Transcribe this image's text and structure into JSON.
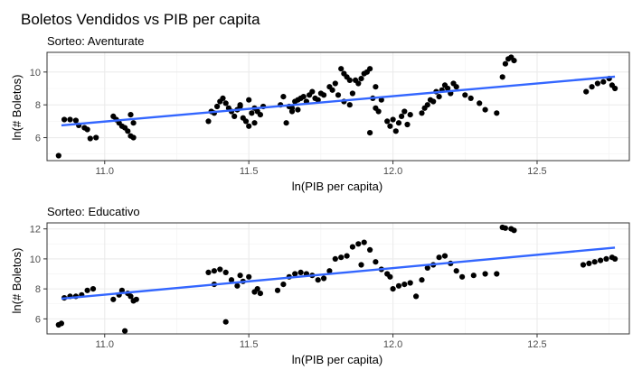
{
  "figure": {
    "title": "Boletos Vendidos vs PIB per capita"
  },
  "chart_data": [
    {
      "type": "scatter",
      "subtitle": "Sorteo: Aventurate",
      "xlabel": "ln(PIB per capita)",
      "ylabel": "ln(# Boletos)",
      "xlim": [
        10.8,
        12.82
      ],
      "ylim": [
        4.6,
        11.2
      ],
      "xticks": [
        11.0,
        11.5,
        12.0,
        12.5
      ],
      "xtick_labels": [
        "11.0",
        "11.5",
        "12.0",
        "12.5"
      ],
      "yticks": [
        6,
        8,
        10
      ],
      "ytick_labels": [
        "6",
        "8",
        "10"
      ],
      "grid": true,
      "point_color": "#000000",
      "trend_color": "#3366ff",
      "trend_line": {
        "x": [
          10.85,
          12.77
        ],
        "y": [
          6.75,
          9.72
        ]
      },
      "points": [
        [
          10.84,
          4.9
        ],
        [
          10.86,
          7.1
        ],
        [
          10.88,
          7.1
        ],
        [
          10.9,
          7.05
        ],
        [
          10.91,
          6.75
        ],
        [
          10.93,
          6.6
        ],
        [
          10.94,
          6.5
        ],
        [
          10.95,
          5.95
        ],
        [
          10.97,
          6.0
        ],
        [
          11.03,
          7.3
        ],
        [
          11.04,
          7.1
        ],
        [
          11.05,
          6.9
        ],
        [
          11.06,
          6.7
        ],
        [
          11.07,
          6.6
        ],
        [
          11.08,
          6.4
        ],
        [
          11.09,
          6.1
        ],
        [
          11.1,
          6.0
        ],
        [
          11.09,
          7.4
        ],
        [
          11.1,
          6.9
        ],
        [
          11.36,
          7.0
        ],
        [
          11.37,
          7.6
        ],
        [
          11.38,
          7.5
        ],
        [
          11.39,
          7.9
        ],
        [
          11.4,
          8.2
        ],
        [
          11.41,
          8.4
        ],
        [
          11.42,
          8.1
        ],
        [
          11.43,
          7.8
        ],
        [
          11.44,
          7.6
        ],
        [
          11.45,
          7.3
        ],
        [
          11.46,
          7.7
        ],
        [
          11.47,
          8.0
        ],
        [
          11.48,
          7.2
        ],
        [
          11.49,
          7.0
        ],
        [
          11.5,
          6.7
        ],
        [
          11.51,
          7.5
        ],
        [
          11.52,
          7.8
        ],
        [
          11.53,
          7.6
        ],
        [
          11.54,
          7.4
        ],
        [
          11.55,
          7.9
        ],
        [
          11.47,
          7.9
        ],
        [
          11.5,
          8.3
        ],
        [
          11.52,
          6.9
        ],
        [
          11.61,
          8.0
        ],
        [
          11.62,
          8.5
        ],
        [
          11.63,
          6.9
        ],
        [
          11.64,
          7.9
        ],
        [
          11.65,
          7.8
        ],
        [
          11.66,
          8.2
        ],
        [
          11.67,
          8.3
        ],
        [
          11.68,
          8.4
        ],
        [
          11.69,
          8.5
        ],
        [
          11.7,
          8.2
        ],
        [
          11.71,
          8.6
        ],
        [
          11.72,
          8.8
        ],
        [
          11.73,
          8.4
        ],
        [
          11.74,
          8.3
        ],
        [
          11.75,
          8.7
        ],
        [
          11.76,
          8.6
        ],
        [
          11.65,
          7.6
        ],
        [
          11.67,
          7.7
        ],
        [
          11.78,
          9.1
        ],
        [
          11.79,
          8.9
        ],
        [
          11.8,
          9.3
        ],
        [
          11.81,
          8.6
        ],
        [
          11.82,
          10.2
        ],
        [
          11.83,
          9.9
        ],
        [
          11.84,
          9.7
        ],
        [
          11.85,
          9.5
        ],
        [
          11.86,
          8.7
        ],
        [
          11.87,
          9.5
        ],
        [
          11.88,
          9.3
        ],
        [
          11.89,
          9.6
        ],
        [
          11.9,
          9.9
        ],
        [
          11.91,
          10.0
        ],
        [
          11.92,
          10.2
        ],
        [
          11.92,
          6.3
        ],
        [
          11.93,
          8.4
        ],
        [
          11.94,
          7.8
        ],
        [
          11.95,
          7.6
        ],
        [
          11.96,
          8.3
        ],
        [
          11.94,
          9.1
        ],
        [
          11.85,
          8.0
        ],
        [
          11.83,
          8.2
        ],
        [
          11.98,
          7.0
        ],
        [
          11.99,
          6.7
        ],
        [
          12.0,
          7.1
        ],
        [
          12.01,
          6.4
        ],
        [
          12.02,
          6.9
        ],
        [
          12.03,
          7.3
        ],
        [
          12.04,
          7.6
        ],
        [
          12.05,
          6.8
        ],
        [
          12.06,
          7.4
        ],
        [
          12.1,
          7.5
        ],
        [
          12.11,
          7.8
        ],
        [
          12.12,
          8.0
        ],
        [
          12.13,
          8.3
        ],
        [
          12.14,
          8.2
        ],
        [
          12.15,
          8.8
        ],
        [
          12.16,
          8.5
        ],
        [
          12.17,
          8.9
        ],
        [
          12.18,
          9.2
        ],
        [
          12.19,
          9.0
        ],
        [
          12.2,
          8.7
        ],
        [
          12.21,
          9.3
        ],
        [
          12.22,
          9.1
        ],
        [
          12.25,
          8.6
        ],
        [
          12.27,
          8.4
        ],
        [
          12.3,
          8.1
        ],
        [
          12.32,
          7.7
        ],
        [
          12.36,
          7.5
        ],
        [
          12.38,
          9.7
        ],
        [
          12.39,
          10.5
        ],
        [
          12.4,
          10.8
        ],
        [
          12.41,
          10.9
        ],
        [
          12.42,
          10.7
        ],
        [
          12.67,
          8.8
        ],
        [
          12.69,
          9.1
        ],
        [
          12.71,
          9.3
        ],
        [
          12.73,
          9.4
        ],
        [
          12.75,
          9.6
        ],
        [
          12.76,
          9.2
        ],
        [
          12.77,
          9.0
        ]
      ]
    },
    {
      "type": "scatter",
      "subtitle": "Sorteo: Educativo",
      "xlabel": "ln(PIB per capita)",
      "ylabel": "ln(# Boletos)",
      "xlim": [
        10.8,
        12.82
      ],
      "ylim": [
        5.0,
        12.4
      ],
      "xticks": [
        11.0,
        11.5,
        12.0,
        12.5
      ],
      "xtick_labels": [
        "11.0",
        "11.5",
        "12.0",
        "12.5"
      ],
      "yticks": [
        6,
        8,
        10,
        12
      ],
      "ytick_labels": [
        "6",
        "8",
        "10",
        "12"
      ],
      "grid": true,
      "point_color": "#000000",
      "trend_color": "#3366ff",
      "trend_line": {
        "x": [
          10.85,
          12.77
        ],
        "y": [
          7.35,
          10.75
        ]
      },
      "points": [
        [
          10.84,
          5.6
        ],
        [
          10.85,
          5.7
        ],
        [
          10.86,
          7.4
        ],
        [
          10.88,
          7.5
        ],
        [
          10.9,
          7.5
        ],
        [
          10.92,
          7.6
        ],
        [
          10.94,
          7.9
        ],
        [
          10.96,
          8.0
        ],
        [
          11.03,
          7.3
        ],
        [
          11.05,
          7.6
        ],
        [
          11.06,
          7.9
        ],
        [
          11.07,
          5.2
        ],
        [
          11.08,
          7.7
        ],
        [
          11.09,
          7.5
        ],
        [
          11.1,
          7.2
        ],
        [
          11.11,
          7.3
        ],
        [
          11.36,
          9.1
        ],
        [
          11.38,
          9.2
        ],
        [
          11.4,
          9.3
        ],
        [
          11.42,
          9.1
        ],
        [
          11.44,
          8.6
        ],
        [
          11.46,
          8.2
        ],
        [
          11.48,
          8.5
        ],
        [
          11.5,
          8.8
        ],
        [
          11.52,
          7.8
        ],
        [
          11.54,
          7.7
        ],
        [
          11.38,
          8.3
        ],
        [
          11.42,
          5.8
        ],
        [
          11.47,
          8.9
        ],
        [
          11.53,
          8.0
        ],
        [
          11.6,
          7.9
        ],
        [
          11.62,
          8.3
        ],
        [
          11.64,
          8.8
        ],
        [
          11.66,
          9.0
        ],
        [
          11.68,
          9.1
        ],
        [
          11.7,
          9.0
        ],
        [
          11.72,
          8.9
        ],
        [
          11.74,
          8.6
        ],
        [
          11.76,
          8.7
        ],
        [
          11.78,
          9.2
        ],
        [
          11.8,
          10.0
        ],
        [
          11.82,
          10.1
        ],
        [
          11.84,
          10.2
        ],
        [
          11.86,
          10.8
        ],
        [
          11.88,
          11.0
        ],
        [
          11.9,
          11.1
        ],
        [
          11.92,
          10.6
        ],
        [
          11.94,
          9.8
        ],
        [
          11.89,
          9.6
        ],
        [
          11.96,
          9.3
        ],
        [
          11.98,
          9.0
        ],
        [
          11.99,
          8.8
        ],
        [
          12.0,
          8.0
        ],
        [
          12.02,
          8.2
        ],
        [
          12.04,
          8.3
        ],
        [
          12.06,
          8.4
        ],
        [
          12.08,
          7.5
        ],
        [
          12.1,
          8.6
        ],
        [
          12.12,
          9.4
        ],
        [
          12.14,
          9.6
        ],
        [
          12.16,
          10.1
        ],
        [
          12.18,
          10.2
        ],
        [
          12.2,
          9.7
        ],
        [
          12.22,
          9.2
        ],
        [
          12.24,
          8.8
        ],
        [
          12.28,
          8.9
        ],
        [
          12.32,
          9.0
        ],
        [
          12.36,
          9.0
        ],
        [
          12.38,
          12.1
        ],
        [
          12.39,
          12.05
        ],
        [
          12.41,
          12.0
        ],
        [
          12.42,
          11.9
        ],
        [
          12.66,
          9.6
        ],
        [
          12.68,
          9.7
        ],
        [
          12.7,
          9.8
        ],
        [
          12.72,
          9.9
        ],
        [
          12.74,
          10.0
        ],
        [
          12.76,
          10.1
        ],
        [
          12.77,
          10.0
        ]
      ]
    }
  ]
}
